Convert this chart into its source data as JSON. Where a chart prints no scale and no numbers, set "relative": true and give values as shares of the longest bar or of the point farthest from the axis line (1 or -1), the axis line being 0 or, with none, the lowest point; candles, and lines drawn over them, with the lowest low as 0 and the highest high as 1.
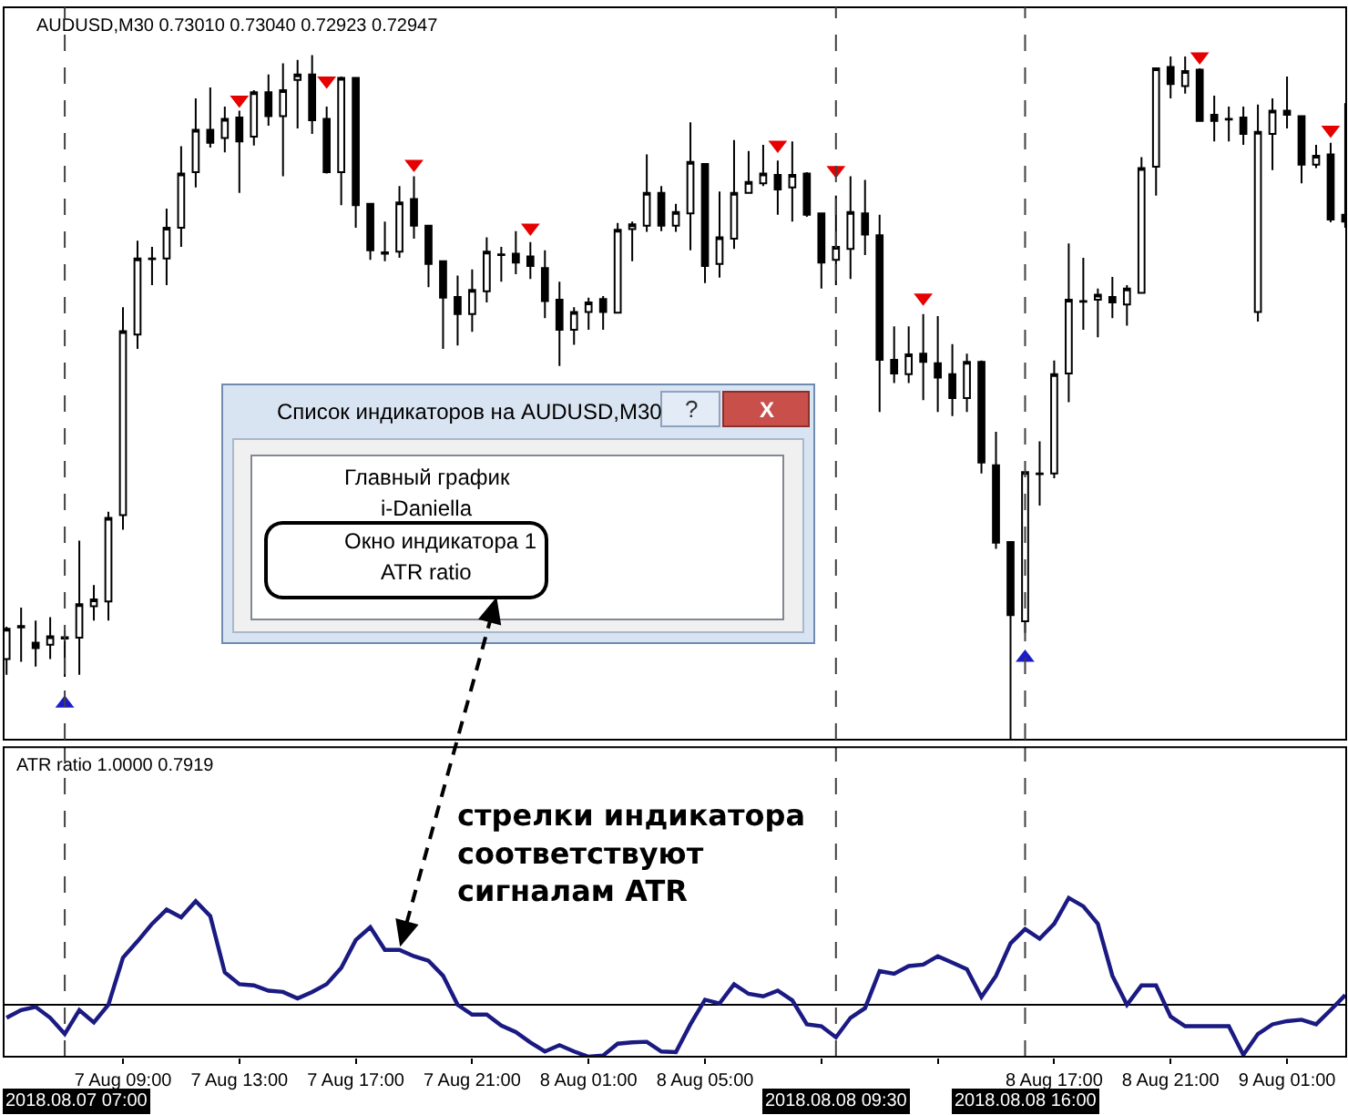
{
  "chart_data": [
    {
      "type": "candlestick",
      "title": "AUDUSD,M30 0.73010 0.73040 0.72923 0.72947",
      "relative": true,
      "tick_labels": false,
      "color": "#000000",
      "xlim": [
        "2018-08-07T04:54",
        "2018-08-09T03:02"
      ],
      "x": [
        "2018-08-07T05:00",
        "2018-08-07T05:30",
        "2018-08-07T06:00",
        "2018-08-07T06:30",
        "2018-08-07T07:00",
        "2018-08-07T07:30",
        "2018-08-07T08:00",
        "2018-08-07T08:30",
        "2018-08-07T09:00",
        "2018-08-07T09:30",
        "2018-08-07T10:00",
        "2018-08-07T10:30",
        "2018-08-07T11:00",
        "2018-08-07T11:30",
        "2018-08-07T12:00",
        "2018-08-07T12:30",
        "2018-08-07T13:00",
        "2018-08-07T13:30",
        "2018-08-07T14:00",
        "2018-08-07T14:30",
        "2018-08-07T15:00",
        "2018-08-07T15:30",
        "2018-08-07T16:00",
        "2018-08-07T16:30",
        "2018-08-07T17:00",
        "2018-08-07T17:30",
        "2018-08-07T18:00",
        "2018-08-07T18:30",
        "2018-08-07T19:00",
        "2018-08-07T19:30",
        "2018-08-07T20:00",
        "2018-08-07T20:30",
        "2018-08-07T21:00",
        "2018-08-07T21:30",
        "2018-08-07T22:00",
        "2018-08-07T22:30",
        "2018-08-07T23:00",
        "2018-08-07T23:30",
        "2018-08-08T00:00",
        "2018-08-08T00:30",
        "2018-08-08T01:00",
        "2018-08-08T01:30",
        "2018-08-08T02:00",
        "2018-08-08T02:30",
        "2018-08-08T03:00",
        "2018-08-08T03:30",
        "2018-08-08T04:00",
        "2018-08-08T04:30",
        "2018-08-08T05:00",
        "2018-08-08T05:30",
        "2018-08-08T06:00",
        "2018-08-08T06:30",
        "2018-08-08T07:00",
        "2018-08-08T07:30",
        "2018-08-08T08:00",
        "2018-08-08T08:30",
        "2018-08-08T09:00",
        "2018-08-08T09:30",
        "2018-08-08T10:00",
        "2018-08-08T10:30",
        "2018-08-08T11:00",
        "2018-08-08T11:30",
        "2018-08-08T12:00",
        "2018-08-08T12:30",
        "2018-08-08T13:00",
        "2018-08-08T13:30",
        "2018-08-08T14:00",
        "2018-08-08T14:30",
        "2018-08-08T15:00",
        "2018-08-08T15:30",
        "2018-08-08T16:00",
        "2018-08-08T16:30",
        "2018-08-08T17:00",
        "2018-08-08T17:30",
        "2018-08-08T18:00",
        "2018-08-08T18:30",
        "2018-08-08T19:00",
        "2018-08-08T19:30",
        "2018-08-08T20:00",
        "2018-08-08T20:30",
        "2018-08-08T21:00",
        "2018-08-08T21:30",
        "2018-08-08T22:00",
        "2018-08-08T22:30",
        "2018-08-08T23:00",
        "2018-08-08T23:30",
        "2018-08-09T00:00",
        "2018-08-09T00:30",
        "2018-08-09T01:00",
        "2018-08-09T01:30",
        "2018-08-09T02:00",
        "2018-08-09T02:30",
        "2018-08-09T03:00"
      ],
      "ohlc": [
        [
          0.118,
          0.165,
          0.095,
          0.162
        ],
        [
          0.166,
          0.193,
          0.114,
          0.164
        ],
        [
          0.142,
          0.174,
          0.107,
          0.134
        ],
        [
          0.139,
          0.179,
          0.118,
          0.151
        ],
        [
          0.15,
          0.16,
          0.092,
          0.148
        ],
        [
          0.149,
          0.291,
          0.095,
          0.198
        ],
        [
          0.195,
          0.226,
          0.174,
          0.205
        ],
        [
          0.202,
          0.333,
          0.174,
          0.324
        ],
        [
          0.328,
          0.632,
          0.307,
          0.597
        ],
        [
          0.592,
          0.729,
          0.571,
          0.703
        ],
        [
          0.703,
          0.72,
          0.664,
          0.702
        ],
        [
          0.703,
          0.776,
          0.664,
          0.748
        ],
        [
          0.748,
          0.867,
          0.72,
          0.827
        ],
        [
          0.829,
          0.937,
          0.807,
          0.891
        ],
        [
          0.891,
          0.953,
          0.865,
          0.872
        ],
        [
          0.879,
          0.925,
          0.858,
          0.907
        ],
        [
          0.909,
          0.919,
          0.799,
          0.874
        ],
        [
          0.881,
          0.949,
          0.868,
          0.946
        ],
        [
          0.946,
          0.972,
          0.897,
          0.911
        ],
        [
          0.911,
          0.988,
          0.823,
          0.949
        ],
        [
          0.964,
          0.993,
          0.893,
          0.972
        ],
        [
          0.972,
          1.0,
          0.885,
          0.905
        ],
        [
          0.907,
          0.925,
          0.827,
          0.829
        ],
        [
          0.829,
          0.969,
          0.781,
          0.967
        ],
        [
          0.967,
          0.967,
          0.748,
          0.781
        ],
        [
          0.783,
          0.783,
          0.701,
          0.715
        ],
        [
          0.712,
          0.757,
          0.699,
          0.71
        ],
        [
          0.713,
          0.809,
          0.704,
          0.785
        ],
        [
          0.79,
          0.823,
          0.732,
          0.751
        ],
        [
          0.751,
          0.751,
          0.661,
          0.695
        ],
        [
          0.699,
          0.699,
          0.571,
          0.646
        ],
        [
          0.647,
          0.678,
          0.576,
          0.622
        ],
        [
          0.622,
          0.687,
          0.596,
          0.657
        ],
        [
          0.655,
          0.734,
          0.639,
          0.713
        ],
        [
          0.709,
          0.72,
          0.669,
          0.708
        ],
        [
          0.71,
          0.743,
          0.68,
          0.697
        ],
        [
          0.706,
          0.727,
          0.673,
          0.692
        ],
        [
          0.689,
          0.715,
          0.616,
          0.641
        ],
        [
          0.643,
          0.669,
          0.546,
          0.599
        ],
        [
          0.599,
          0.632,
          0.577,
          0.625
        ],
        [
          0.625,
          0.646,
          0.599,
          0.639
        ],
        [
          0.644,
          0.648,
          0.599,
          0.625
        ],
        [
          0.624,
          0.755,
          0.624,
          0.745
        ],
        [
          0.746,
          0.757,
          0.699,
          0.753
        ],
        [
          0.751,
          0.855,
          0.742,
          0.799
        ],
        [
          0.799,
          0.809,
          0.743,
          0.751
        ],
        [
          0.751,
          0.783,
          0.742,
          0.771
        ],
        [
          0.769,
          0.902,
          0.715,
          0.844
        ],
        [
          0.841,
          0.841,
          0.667,
          0.692
        ],
        [
          0.695,
          0.801,
          0.675,
          0.734
        ],
        [
          0.732,
          0.876,
          0.717,
          0.799
        ],
        [
          0.799,
          0.86,
          0.798,
          0.815
        ],
        [
          0.813,
          0.869,
          0.809,
          0.827
        ],
        [
          0.825,
          0.846,
          0.767,
          0.804
        ],
        [
          0.807,
          0.874,
          0.757,
          0.825
        ],
        [
          0.827,
          0.829,
          0.764,
          0.767
        ],
        [
          0.769,
          0.769,
          0.659,
          0.697
        ],
        [
          0.701,
          0.795,
          0.664,
          0.72
        ],
        [
          0.717,
          0.823,
          0.673,
          0.771
        ],
        [
          0.769,
          0.818,
          0.708,
          0.738
        ],
        [
          0.737,
          0.767,
          0.479,
          0.555
        ],
        [
          0.555,
          0.604,
          0.521,
          0.535
        ],
        [
          0.534,
          0.604,
          0.521,
          0.563
        ],
        [
          0.564,
          0.622,
          0.496,
          0.552
        ],
        [
          0.55,
          0.619,
          0.479,
          0.529
        ],
        [
          0.534,
          0.578,
          0.473,
          0.499
        ],
        [
          0.499,
          0.564,
          0.479,
          0.552
        ],
        [
          0.552,
          0.554,
          0.389,
          0.405
        ],
        [
          0.401,
          0.45,
          0.279,
          0.288
        ],
        [
          0.289,
          0.289,
          0,
          0.182
        ],
        [
          0.173,
          0.391,
          0.156,
          0.391
        ],
        [
          0.389,
          0.436,
          0.342,
          0.388
        ],
        [
          0.389,
          0.554,
          0.382,
          0.534
        ],
        [
          0.535,
          0.725,
          0.493,
          0.643
        ],
        [
          0.641,
          0.704,
          0.599,
          0.64
        ],
        [
          0.643,
          0.659,
          0.588,
          0.65
        ],
        [
          0.647,
          0.676,
          0.616,
          0.639
        ],
        [
          0.636,
          0.664,
          0.605,
          0.659
        ],
        [
          0.653,
          0.851,
          0.653,
          0.835
        ],
        [
          0.837,
          0.981,
          0.795,
          0.981
        ],
        [
          0.983,
          0.998,
          0.937,
          0.958
        ],
        [
          0.955,
          0.998,
          0.944,
          0.977
        ],
        [
          0.979,
          0.981,
          0.904,
          0.904
        ],
        [
          0.913,
          0.941,
          0.874,
          0.904
        ],
        [
          0.907,
          0.925,
          0.874,
          0.906
        ],
        [
          0.909,
          0.925,
          0.869,
          0.885
        ],
        [
          0.625,
          0.928,
          0.611,
          0.888
        ],
        [
          0.885,
          0.937,
          0.832,
          0.919
        ],
        [
          0.919,
          0.969,
          0.893,
          0.913
        ],
        [
          0.911,
          0.911,
          0.813,
          0.84
        ],
        [
          0.84,
          0.869,
          0.835,
          0.853
        ],
        [
          0.855,
          0.872,
          0.756,
          0.76
        ],
        [
          0.767,
          0.93,
          0.748,
          0.757
        ]
      ],
      "colors": [
        "#ffffff",
        "#000000",
        "#000000",
        "#ffffff",
        "#000000",
        "#ffffff",
        "#ffffff",
        "#ffffff",
        "#ffffff",
        "#ffffff",
        "#000000",
        "#ffffff",
        "#ffffff",
        "#ffffff",
        "#000000",
        "#ffffff",
        "#000000",
        "#ffffff",
        "#000000",
        "#ffffff",
        "#ffffff",
        "#000000",
        "#000000",
        "#ffffff",
        "#000000",
        "#000000",
        "#000000",
        "#ffffff",
        "#000000",
        "#000000",
        "#000000",
        "#000000",
        "#ffffff",
        "#ffffff",
        "#000000",
        "#000000",
        "#000000",
        "#000000",
        "#000000",
        "#ffffff",
        "#ffffff",
        "#000000",
        "#ffffff",
        "#ffffff",
        "#ffffff",
        "#000000",
        "#ffffff",
        "#ffffff",
        "#000000",
        "#ffffff",
        "#ffffff",
        "#ffffff",
        "#ffffff",
        "#000000",
        "#ffffff",
        "#000000",
        "#000000",
        "#ffffff",
        "#ffffff",
        "#000000",
        "#000000",
        "#000000",
        "#ffffff",
        "#000000",
        "#000000",
        "#000000",
        "#ffffff",
        "#000000",
        "#000000",
        "#000000",
        "#ffffff",
        "#000000",
        "#ffffff",
        "#ffffff",
        "#000000",
        "#ffffff",
        "#000000",
        "#ffffff",
        "#ffffff",
        "#ffffff",
        "#000000",
        "#ffffff",
        "#000000",
        "#000000",
        "#000000",
        "#000000",
        "#ffffff",
        "#ffffff",
        "#000000",
        "#000000",
        "#ffffff",
        "#000000",
        "#000000"
      ],
      "series": [
        {
          "type": "scatter",
          "marker": "triangle",
          "color": "#e60000",
          "x": [
            "2018-08-07T13:00",
            "2018-08-07T16:00",
            "2018-08-07T19:00",
            "2018-08-07T23:00",
            "2018-08-08T07:30",
            "2018-08-08T09:30",
            "2018-08-08T12:30",
            "2018-08-08T22:00",
            "2018-08-09T02:30"
          ],
          "values": [
            0.935,
            0.963,
            0.841,
            0.748,
            0.869,
            0.832,
            0.646,
            0.998,
            0.891
          ]
        },
        {
          "type": "scatter",
          "marker": "triangle",
          "color": "#1c1cc8",
          "x": [
            "2018-08-07T07:00",
            "2018-08-08T16:00"
          ],
          "values": [
            0.053,
            0.12
          ]
        }
      ],
      "ref_lines": [
        {
          "axis": "x",
          "value": "2018-08-07T07:00",
          "color": "#404040",
          "line_style": "dashed"
        },
        {
          "axis": "x",
          "value": "2018-08-08T09:30",
          "color": "#404040",
          "line_style": "dashed"
        },
        {
          "axis": "x",
          "value": "2018-08-08T16:00",
          "color": "#404040",
          "line_style": "dashed"
        }
      ],
      "annotations": [
        "Список индикаторов на AUDUSD,M30",
        "?",
        "X",
        "Главный график",
        "i-Daniella",
        "Окно индикатора 1",
        "ATR ratio"
      ]
    },
    {
      "type": "line",
      "title": "ATR ratio 1.0000 0.7919",
      "relative": true,
      "tick_labels": "x",
      "xlim": [
        "2018-08-07T04:54",
        "2018-08-09T03:02"
      ],
      "x": [
        "2018-08-07T05:00",
        "2018-08-07T05:30",
        "2018-08-07T06:00",
        "2018-08-07T06:30",
        "2018-08-07T07:00",
        "2018-08-07T07:30",
        "2018-08-07T08:00",
        "2018-08-07T08:30",
        "2018-08-07T09:00",
        "2018-08-07T09:30",
        "2018-08-07T10:00",
        "2018-08-07T10:30",
        "2018-08-07T11:00",
        "2018-08-07T11:30",
        "2018-08-07T12:00",
        "2018-08-07T12:30",
        "2018-08-07T13:00",
        "2018-08-07T13:30",
        "2018-08-07T14:00",
        "2018-08-07T14:30",
        "2018-08-07T15:00",
        "2018-08-07T15:30",
        "2018-08-07T16:00",
        "2018-08-07T16:30",
        "2018-08-07T17:00",
        "2018-08-07T17:30",
        "2018-08-07T18:00",
        "2018-08-07T18:30",
        "2018-08-07T19:00",
        "2018-08-07T19:30",
        "2018-08-07T20:00",
        "2018-08-07T20:30",
        "2018-08-07T21:00",
        "2018-08-07T21:30",
        "2018-08-07T22:00",
        "2018-08-07T22:30",
        "2018-08-07T23:00",
        "2018-08-07T23:30",
        "2018-08-08T00:00",
        "2018-08-08T00:30",
        "2018-08-08T01:00",
        "2018-08-08T01:30",
        "2018-08-08T02:00",
        "2018-08-08T02:30",
        "2018-08-08T03:00",
        "2018-08-08T03:30",
        "2018-08-08T04:00",
        "2018-08-08T04:30",
        "2018-08-08T05:00",
        "2018-08-08T05:30",
        "2018-08-08T06:00",
        "2018-08-08T06:30",
        "2018-08-08T07:00",
        "2018-08-08T07:30",
        "2018-08-08T08:00",
        "2018-08-08T08:30",
        "2018-08-08T09:00",
        "2018-08-08T09:30",
        "2018-08-08T10:00",
        "2018-08-08T10:30",
        "2018-08-08T11:00",
        "2018-08-08T11:30",
        "2018-08-08T12:00",
        "2018-08-08T12:30",
        "2018-08-08T13:00",
        "2018-08-08T13:30",
        "2018-08-08T14:00",
        "2018-08-08T14:30",
        "2018-08-08T15:00",
        "2018-08-08T15:30",
        "2018-08-08T16:00",
        "2018-08-08T16:30",
        "2018-08-08T17:00",
        "2018-08-08T17:30",
        "2018-08-08T18:00",
        "2018-08-08T18:30",
        "2018-08-08T19:00",
        "2018-08-08T19:30",
        "2018-08-08T20:00",
        "2018-08-08T20:30",
        "2018-08-08T21:00",
        "2018-08-08T21:30",
        "2018-08-08T22:00",
        "2018-08-08T22:30",
        "2018-08-08T23:00",
        "2018-08-08T23:30",
        "2018-08-09T00:00",
        "2018-08-09T00:30",
        "2018-08-09T01:00",
        "2018-08-09T01:30",
        "2018-08-09T02:00",
        "2018-08-09T02:30",
        "2018-08-09T03:00"
      ],
      "series": [
        {
          "color": "#1a1a82",
          "values": [
            0.245,
            0.294,
            0.314,
            0.245,
            0.143,
            0.294,
            0.216,
            0.327,
            0.624,
            0.727,
            0.837,
            0.927,
            0.878,
            0.98,
            0.886,
            0.531,
            0.457,
            0.449,
            0.416,
            0.408,
            0.367,
            0.408,
            0.457,
            0.559,
            0.735,
            0.816,
            0.673,
            0.673,
            0.633,
            0.604,
            0.51,
            0.327,
            0.265,
            0.265,
            0.196,
            0.155,
            0.09,
            0.033,
            0.073,
            0.033,
            0,
            0.008,
            0.082,
            0.09,
            0.094,
            0.033,
            0.029,
            0.204,
            0.359,
            0.335,
            0.457,
            0.396,
            0.38,
            0.416,
            0.355,
            0.204,
            0.192,
            0.122,
            0.245,
            0.306,
            0.539,
            0.522,
            0.571,
            0.58,
            0.633,
            0.592,
            0.551,
            0.376,
            0.51,
            0.714,
            0.804,
            0.743,
            0.837,
            1.0,
            0.947,
            0.837,
            0.51,
            0.327,
            0.449,
            0.449,
            0.253,
            0.192,
            0.192,
            0.192,
            0.192,
            0.012,
            0.143,
            0.204,
            0.224,
            0.233,
            0.204,
            0.294,
            0.388
          ]
        }
      ],
      "xticks": [
        {
          "value": "2018-08-07T09:00",
          "label": "7 Aug 09:00"
        },
        {
          "value": "2018-08-07T13:00",
          "label": "7 Aug 13:00"
        },
        {
          "value": "2018-08-07T17:00",
          "label": "7 Aug 17:00"
        },
        {
          "value": "2018-08-07T21:00",
          "label": "7 Aug 21:00"
        },
        {
          "value": "2018-08-08T01:00",
          "label": "8 Aug 01:00"
        },
        {
          "value": "2018-08-08T05:00",
          "label": "8 Aug 05:00"
        },
        {
          "value": "2018-08-08T09:00",
          "label": null
        },
        {
          "value": "2018-08-08T13:00",
          "label": null
        },
        {
          "value": "2018-08-08T17:00",
          "label": "8 Aug 17:00"
        },
        {
          "value": "2018-08-08T21:00",
          "label": "8 Aug 21:00"
        },
        {
          "value": "2018-08-09T01:00",
          "label": "9 Aug 01:00"
        }
      ],
      "ref_lines": [
        {
          "axis": "x",
          "value": "2018-08-07T07:00",
          "label": "2018.08.07 07:00",
          "color": "#404040",
          "line_style": "dashed"
        },
        {
          "axis": "x",
          "value": "2018-08-08T09:30",
          "label": "2018.08.08 09:30",
          "color": "#404040",
          "line_style": "dashed"
        },
        {
          "axis": "x",
          "value": "2018-08-08T16:00",
          "label": "2018.08.08 16:00",
          "color": "#404040",
          "line_style": "dashed"
        },
        {
          "axis": "y",
          "value": 0.327,
          "color": "#000000",
          "line_style": "solid"
        }
      ],
      "annotations": [
        {
          "text": "стрелки индикатора\nсоответствуют\nсигналам ATR",
          "x": "2018-08-07T18:30",
          "y": 0.673
        }
      ]
    }
  ]
}
